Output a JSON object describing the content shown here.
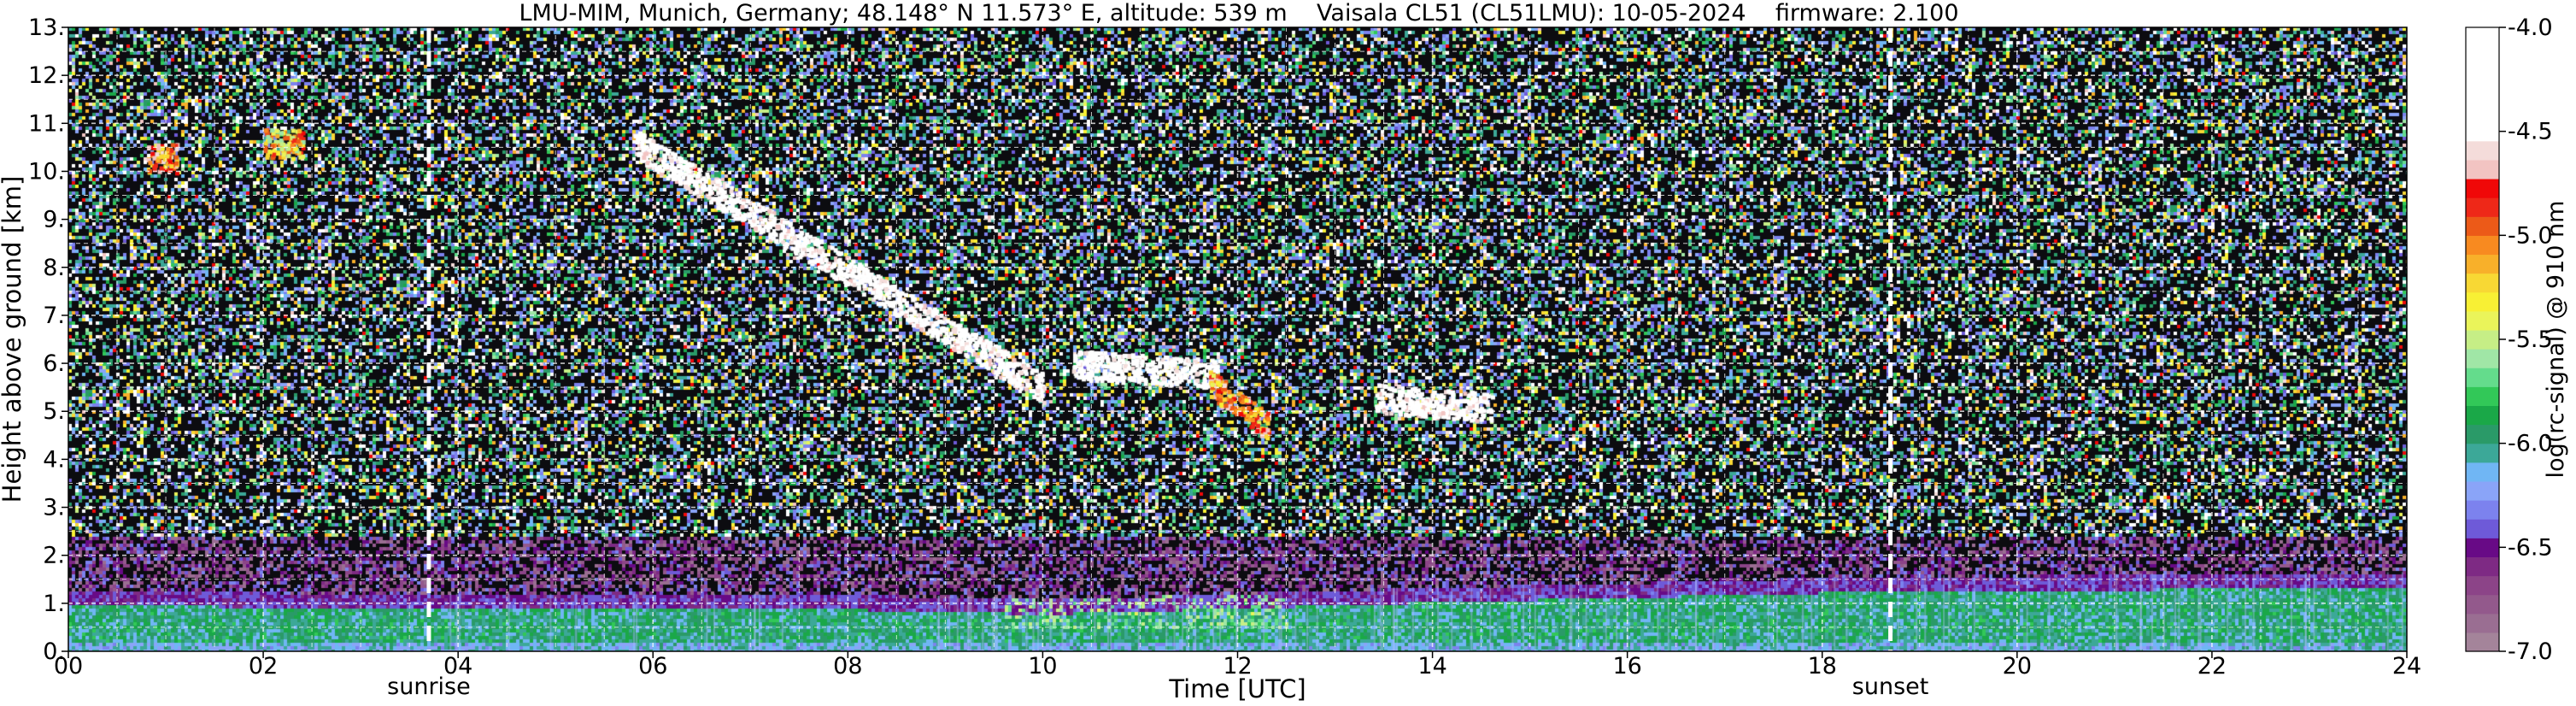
{
  "chart_data": {
    "type": "heatmap",
    "title": "LMU-MIM, Munich, Germany; 48.148° N 11.573° E, altitude: 539 m    Vaisala CL51 (CL51LMU): 10-05-2024    firmware: 2.100",
    "xlabel": "Time [UTC]",
    "ylabel": "Height above ground [km]",
    "colorbar_label": "log(rc-signal) @ 910 nm",
    "xlim": [
      0,
      24
    ],
    "ylim": [
      0,
      13
    ],
    "x_ticks": [
      {
        "value": 0,
        "label": "00"
      },
      {
        "value": 2,
        "label": "02"
      },
      {
        "value": 4,
        "label": "04"
      },
      {
        "value": 6,
        "label": "06"
      },
      {
        "value": 8,
        "label": "08"
      },
      {
        "value": 10,
        "label": "10"
      },
      {
        "value": 12,
        "label": "12"
      },
      {
        "value": 14,
        "label": "14"
      },
      {
        "value": 16,
        "label": "16"
      },
      {
        "value": 18,
        "label": "18"
      },
      {
        "value": 20,
        "label": "20"
      },
      {
        "value": 22,
        "label": "22"
      },
      {
        "value": 24,
        "label": "24"
      }
    ],
    "y_ticks": [
      {
        "value": 0,
        "label": "0."
      },
      {
        "value": 1,
        "label": "1."
      },
      {
        "value": 2,
        "label": "2."
      },
      {
        "value": 3,
        "label": "3."
      },
      {
        "value": 4,
        "label": "4."
      },
      {
        "value": 5,
        "label": "5."
      },
      {
        "value": 6,
        "label": "6."
      },
      {
        "value": 7,
        "label": "7."
      },
      {
        "value": 8,
        "label": "8."
      },
      {
        "value": 9,
        "label": "9."
      },
      {
        "value": 10,
        "label": "10."
      },
      {
        "value": 11,
        "label": "11."
      },
      {
        "value": 12,
        "label": "12."
      },
      {
        "value": 13,
        "label": "13."
      }
    ],
    "grid": true,
    "colorbar": {
      "range": [
        -7.0,
        -4.0
      ],
      "ticks": [
        {
          "value": -7.0,
          "label": "-7.0"
        },
        {
          "value": -6.5,
          "label": "-6.5"
        },
        {
          "value": -6.0,
          "label": "-6.0"
        },
        {
          "value": -5.5,
          "label": "-5.5"
        },
        {
          "value": -5.0,
          "label": "-5.0"
        },
        {
          "value": -4.5,
          "label": "-4.5"
        },
        {
          "value": -4.0,
          "label": "-4.0"
        }
      ],
      "colors_bottom_to_top": [
        "#a4849a",
        "#9a6e92",
        "#93598c",
        "#8c4488",
        "#7e2a84",
        "#680a86",
        "#6e5ad8",
        "#7c82ee",
        "#8aa4f8",
        "#70b6f4",
        "#3ca898",
        "#2a9a68",
        "#1aa848",
        "#32c858",
        "#64dc8c",
        "#a0e6a6",
        "#c6ee86",
        "#eaf45a",
        "#f8f034",
        "#f8d834",
        "#f8b02a",
        "#f88a20",
        "#ec5a18",
        "#ee2818",
        "#f00808",
        "#f2c4c2",
        "#f4dcda",
        "#ffffff",
        "#ffffff",
        "#ffffff",
        "#ffffff",
        "#ffffff",
        "#ffffff"
      ]
    },
    "annotations": [
      {
        "x": 3.7,
        "label": "sunrise"
      },
      {
        "x": 18.7,
        "label": "sunset"
      }
    ],
    "boundary_layer": {
      "description_free": true,
      "height_km_by_hour": [
        {
          "t": 0,
          "top": 1.3
        },
        {
          "t": 4,
          "top": 1.2
        },
        {
          "t": 8,
          "top": 1.2
        },
        {
          "t": 10,
          "top": 1.1
        },
        {
          "t": 14,
          "top": 1.35
        },
        {
          "t": 18,
          "top": 1.55
        },
        {
          "t": 20,
          "top": 1.6
        },
        {
          "t": 24,
          "top": 1.65
        }
      ]
    },
    "cloud_features": [
      {
        "t_start": 5.8,
        "t_end": 10.0,
        "h_start": 10.6,
        "h_end": 5.5,
        "level": -4.3
      },
      {
        "t_start": 10.3,
        "t_end": 11.8,
        "h_start": 6.0,
        "h_end": 5.8,
        "level": -4.2
      },
      {
        "t_start": 11.7,
        "t_end": 12.3,
        "h_start": 5.6,
        "h_end": 4.7,
        "level": -5.0
      },
      {
        "t_start": 13.4,
        "t_end": 14.6,
        "h_start": 5.3,
        "h_end": 5.1,
        "level": -4.3
      },
      {
        "t_start": 0.8,
        "t_end": 1.1,
        "h_start": 10.3,
        "h_end": 10.3,
        "level": -5.0
      },
      {
        "t_start": 2.0,
        "t_end": 2.4,
        "h_start": 10.6,
        "h_end": 10.6,
        "level": -5.2
      }
    ]
  }
}
